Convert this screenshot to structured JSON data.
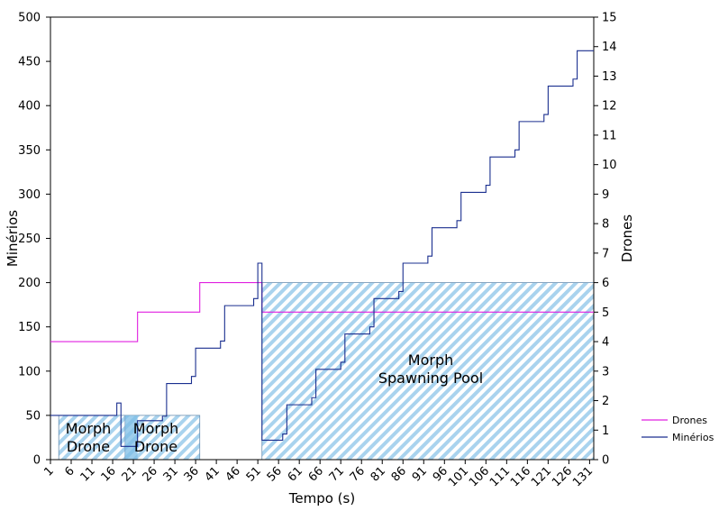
{
  "chart_data": {
    "type": "line",
    "xlabel": "Tempo (s)",
    "ylabel_left": "Minérios",
    "ylabel_right": "Drones",
    "x_range": [
      1,
      132
    ],
    "x_ticks": [
      1,
      6,
      11,
      16,
      21,
      26,
      31,
      36,
      41,
      46,
      51,
      56,
      61,
      66,
      71,
      76,
      81,
      86,
      91,
      96,
      101,
      106,
      111,
      116,
      121,
      126,
      131
    ],
    "y_left_range": [
      0,
      500
    ],
    "y_left_ticks": [
      0,
      50,
      100,
      150,
      200,
      250,
      300,
      350,
      400,
      450,
      500
    ],
    "y_right_range": [
      0,
      15
    ],
    "y_right_ticks": [
      0,
      1,
      2,
      3,
      4,
      5,
      6,
      7,
      8,
      9,
      10,
      11,
      12,
      13,
      14,
      15
    ],
    "grid": false,
    "legend_position": "right",
    "series": [
      {
        "name": "Drones",
        "axis": "right",
        "color": "#e020e0",
        "points": [
          [
            1,
            4
          ],
          [
            22,
            4
          ],
          [
            22,
            5
          ],
          [
            37,
            5
          ],
          [
            37,
            6
          ],
          [
            52,
            6
          ],
          [
            52,
            5
          ],
          [
            132,
            5
          ]
        ]
      },
      {
        "name": "Minérios",
        "axis": "left",
        "color": "#1a2f8f",
        "points": [
          [
            1,
            50
          ],
          [
            17,
            50
          ],
          [
            17,
            64
          ],
          [
            18,
            64
          ],
          [
            18,
            15
          ],
          [
            22,
            15
          ],
          [
            22,
            44
          ],
          [
            28,
            44
          ],
          [
            28,
            49
          ],
          [
            29,
            49
          ],
          [
            29,
            86
          ],
          [
            35,
            86
          ],
          [
            35,
            94
          ],
          [
            36,
            94
          ],
          [
            36,
            126
          ],
          [
            42,
            126
          ],
          [
            42,
            134
          ],
          [
            43,
            134
          ],
          [
            43,
            174
          ],
          [
            50,
            174
          ],
          [
            50,
            182
          ],
          [
            51,
            182
          ],
          [
            51,
            222
          ],
          [
            52,
            222
          ],
          [
            52,
            22
          ],
          [
            57,
            22
          ],
          [
            57,
            29
          ],
          [
            58,
            29
          ],
          [
            58,
            62
          ],
          [
            64,
            62
          ],
          [
            64,
            70
          ],
          [
            65,
            70
          ],
          [
            65,
            102
          ],
          [
            71,
            102
          ],
          [
            71,
            110
          ],
          [
            72,
            110
          ],
          [
            72,
            142
          ],
          [
            78,
            142
          ],
          [
            78,
            150
          ],
          [
            79,
            150
          ],
          [
            79,
            182
          ],
          [
            85,
            182
          ],
          [
            85,
            190
          ],
          [
            86,
            190
          ],
          [
            86,
            222
          ],
          [
            92,
            222
          ],
          [
            92,
            230
          ],
          [
            93,
            230
          ],
          [
            93,
            262
          ],
          [
            99,
            262
          ],
          [
            99,
            270
          ],
          [
            100,
            270
          ],
          [
            100,
            302
          ],
          [
            106,
            302
          ],
          [
            106,
            310
          ],
          [
            107,
            310
          ],
          [
            107,
            342
          ],
          [
            113,
            342
          ],
          [
            113,
            350
          ],
          [
            114,
            350
          ],
          [
            114,
            382
          ],
          [
            120,
            382
          ],
          [
            120,
            390
          ],
          [
            121,
            390
          ],
          [
            121,
            422
          ],
          [
            127,
            422
          ],
          [
            127,
            430
          ],
          [
            128,
            430
          ],
          [
            128,
            462
          ],
          [
            132,
            462
          ]
        ]
      }
    ],
    "annotations": [
      {
        "label": "Morph\nDrone",
        "x_start": 3,
        "x_end": 22,
        "value": 50
      },
      {
        "label": "Morph\nDrone",
        "x_start": 19,
        "x_end": 37,
        "value": 50
      },
      {
        "label": "Morph\nSpawning Pool",
        "x_start": 52,
        "x_end": 132,
        "value": 200
      }
    ]
  },
  "colors": {
    "hatch_light": "#ffffff",
    "hatch_blue": "#a9d3ee",
    "hatch_overlap": "#7ebde6"
  }
}
